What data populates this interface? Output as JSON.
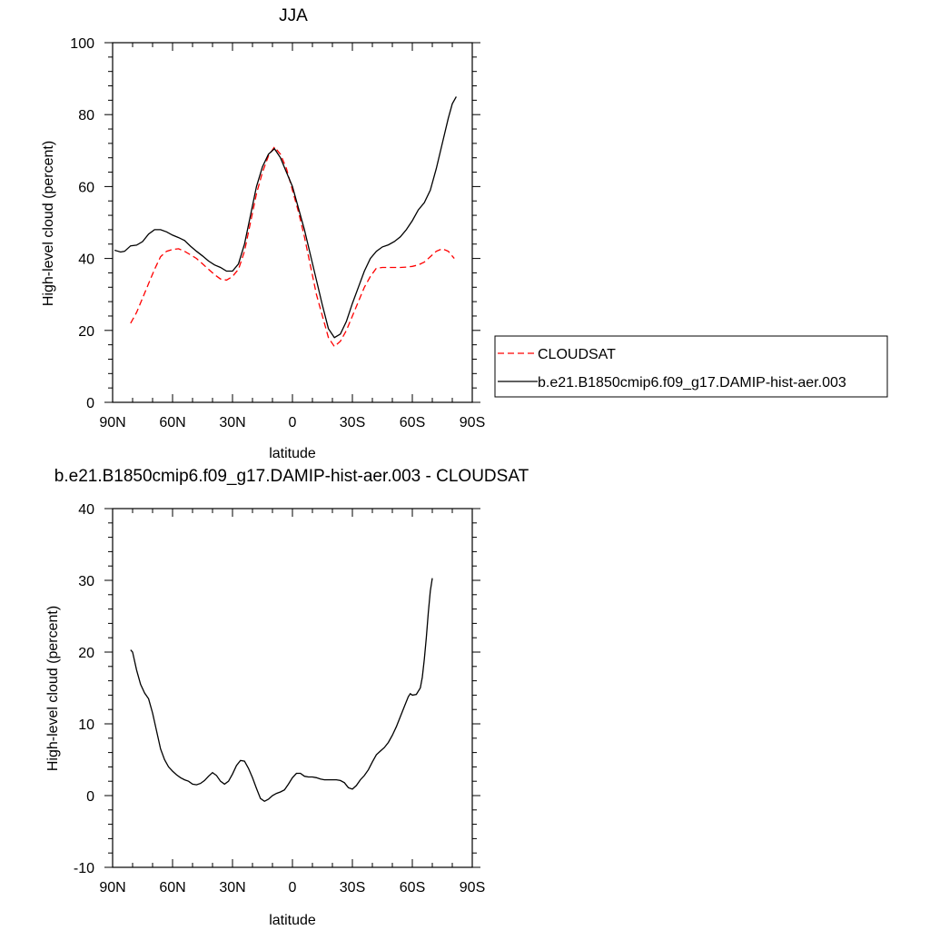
{
  "chart_data": [
    {
      "type": "line",
      "title": "JJA",
      "xlabel": "latitude",
      "ylabel": "High-level cloud (percent)",
      "xlim": [
        90,
        -90
      ],
      "ylim": [
        0,
        100
      ],
      "x_ticks": [
        {
          "value": 90,
          "label": "90N"
        },
        {
          "value": 60,
          "label": "60N"
        },
        {
          "value": 30,
          "label": "30N"
        },
        {
          "value": 0,
          "label": "0"
        },
        {
          "value": -30,
          "label": "30S"
        },
        {
          "value": -60,
          "label": "60S"
        },
        {
          "value": -90,
          "label": "90S"
        }
      ],
      "y_ticks": [
        0,
        20,
        40,
        60,
        80,
        100
      ],
      "grid": false,
      "legend_position": "right",
      "series": [
        {
          "name": "CLOUDSAT",
          "style": "dashed",
          "color": "#ff0000",
          "points": [
            [
              81,
              22
            ],
            [
              78,
              25
            ],
            [
              75,
              29
            ],
            [
              72,
              33
            ],
            [
              69,
              37
            ],
            [
              66,
              40.5
            ],
            [
              63,
              42
            ],
            [
              60,
              42.5
            ],
            [
              57,
              42.7
            ],
            [
              54,
              42
            ],
            [
              51,
              41
            ],
            [
              48,
              40
            ],
            [
              45,
              38.5
            ],
            [
              42,
              37
            ],
            [
              39,
              35.5
            ],
            [
              36,
              34.3
            ],
            [
              33,
              34
            ],
            [
              30,
              35
            ],
            [
              27,
              37
            ],
            [
              24,
              42
            ],
            [
              21,
              50
            ],
            [
              18,
              58
            ],
            [
              15,
              64
            ],
            [
              12,
              68.5
            ],
            [
              9,
              71
            ],
            [
              6,
              69
            ],
            [
              3,
              65
            ],
            [
              0,
              59
            ],
            [
              -3,
              53
            ],
            [
              -6,
              46
            ],
            [
              -9,
              38
            ],
            [
              -12,
              30
            ],
            [
              -15,
              24
            ],
            [
              -18,
              18
            ],
            [
              -21,
              15.5
            ],
            [
              -24,
              17
            ],
            [
              -27,
              20
            ],
            [
              -30,
              24
            ],
            [
              -33,
              28
            ],
            [
              -36,
              32
            ],
            [
              -39,
              35
            ],
            [
              -42,
              37.3
            ],
            [
              -45,
              37.5
            ],
            [
              -48,
              37.5
            ],
            [
              -51,
              37.5
            ],
            [
              -54,
              37.5
            ],
            [
              -57,
              37.6
            ],
            [
              -60,
              37.8
            ],
            [
              -63,
              38.2
            ],
            [
              -66,
              39
            ],
            [
              -69,
              40.5
            ],
            [
              -72,
              42
            ],
            [
              -75,
              42.7
            ],
            [
              -78,
              42
            ],
            [
              -81,
              40
            ]
          ]
        },
        {
          "name": "b.e21.B1850cmip6.f09_g17.DAMIP-hist-aer.003",
          "style": "solid",
          "color": "#000000",
          "points": [
            [
              89,
              42.3
            ],
            [
              86,
              41.8
            ],
            [
              84,
              42
            ],
            [
              81,
              43.5
            ],
            [
              78,
              43.7
            ],
            [
              75,
              44.7
            ],
            [
              72,
              46.8
            ],
            [
              69,
              48
            ],
            [
              66,
              48
            ],
            [
              63,
              47.4
            ],
            [
              60,
              46.5
            ],
            [
              57,
              45.8
            ],
            [
              54,
              45
            ],
            [
              51,
              43.4
            ],
            [
              48,
              42
            ],
            [
              45,
              40.7
            ],
            [
              42,
              39.3
            ],
            [
              39,
              38.2
            ],
            [
              36,
              37.5
            ],
            [
              33,
              36.5
            ],
            [
              30,
              36.5
            ],
            [
              27,
              38.5
            ],
            [
              24,
              44
            ],
            [
              21,
              52
            ],
            [
              18,
              60
            ],
            [
              15,
              65.5
            ],
            [
              12,
              69
            ],
            [
              9,
              70.5
            ],
            [
              6,
              68
            ],
            [
              3,
              64
            ],
            [
              0,
              60
            ],
            [
              -3,
              54
            ],
            [
              -6,
              48
            ],
            [
              -9,
              41
            ],
            [
              -12,
              34
            ],
            [
              -15,
              27
            ],
            [
              -18,
              20.5
            ],
            [
              -21,
              18
            ],
            [
              -24,
              19
            ],
            [
              -27,
              22.5
            ],
            [
              -30,
              27.5
            ],
            [
              -33,
              32
            ],
            [
              -36,
              36.5
            ],
            [
              -39,
              40
            ],
            [
              -42,
              42
            ],
            [
              -45,
              43.2
            ],
            [
              -48,
              43.8
            ],
            [
              -51,
              44.7
            ],
            [
              -54,
              46
            ],
            [
              -57,
              48
            ],
            [
              -60,
              50.5
            ],
            [
              -63,
              53.5
            ],
            [
              -66,
              55.5
            ],
            [
              -69,
              59
            ],
            [
              -72,
              65
            ],
            [
              -75,
              72
            ],
            [
              -78,
              79
            ],
            [
              -80,
              83
            ],
            [
              -82,
              85
            ]
          ]
        }
      ]
    },
    {
      "type": "line",
      "title": "b.e21.B1850cmip6.f09_g17.DAMIP-hist-aer.003 - CLOUDSAT",
      "xlabel": "latitude",
      "ylabel": "High-level cloud (percent)",
      "xlim": [
        90,
        -90
      ],
      "ylim": [
        -10,
        40
      ],
      "x_ticks": [
        {
          "value": 90,
          "label": "90N"
        },
        {
          "value": 60,
          "label": "60N"
        },
        {
          "value": 30,
          "label": "30N"
        },
        {
          "value": 0,
          "label": "0"
        },
        {
          "value": -30,
          "label": "30S"
        },
        {
          "value": -60,
          "label": "60S"
        },
        {
          "value": -90,
          "label": "90S"
        }
      ],
      "y_ticks": [
        -10,
        0,
        10,
        20,
        30,
        40
      ],
      "grid": false,
      "series": [
        {
          "style": "solid",
          "color": "#000000",
          "points": [
            [
              81,
              20.3
            ],
            [
              80,
              20
            ],
            [
              78,
              17.5
            ],
            [
              76,
              15.5
            ],
            [
              74,
              14.3
            ],
            [
              72,
              13.5
            ],
            [
              70,
              11.5
            ],
            [
              68,
              9
            ],
            [
              66,
              6.5
            ],
            [
              64,
              5
            ],
            [
              62,
              4
            ],
            [
              60,
              3.4
            ],
            [
              58,
              2.9
            ],
            [
              56,
              2.5
            ],
            [
              54,
              2.2
            ],
            [
              52,
              2
            ],
            [
              50,
              1.6
            ],
            [
              48,
              1.5
            ],
            [
              46,
              1.7
            ],
            [
              44,
              2.1
            ],
            [
              42,
              2.7
            ],
            [
              40,
              3.2
            ],
            [
              38,
              2.8
            ],
            [
              36,
              2
            ],
            [
              34,
              1.6
            ],
            [
              32,
              2
            ],
            [
              30,
              3
            ],
            [
              28,
              4.2
            ],
            [
              26,
              4.9
            ],
            [
              24,
              4.8
            ],
            [
              22,
              3.8
            ],
            [
              20,
              2.5
            ],
            [
              18,
              1
            ],
            [
              16,
              -0.4
            ],
            [
              14,
              -0.8
            ],
            [
              12,
              -0.5
            ],
            [
              10,
              0
            ],
            [
              8,
              0.3
            ],
            [
              6,
              0.5
            ],
            [
              4,
              0.8
            ],
            [
              2,
              1.6
            ],
            [
              0,
              2.5
            ],
            [
              -2,
              3.1
            ],
            [
              -4,
              3.1
            ],
            [
              -6,
              2.7
            ],
            [
              -8,
              2.6
            ],
            [
              -10,
              2.6
            ],
            [
              -12,
              2.5
            ],
            [
              -14,
              2.3
            ],
            [
              -16,
              2.2
            ],
            [
              -18,
              2.2
            ],
            [
              -20,
              2.2
            ],
            [
              -22,
              2.2
            ],
            [
              -24,
              2.1
            ],
            [
              -26,
              1.8
            ],
            [
              -28,
              1.1
            ],
            [
              -30,
              0.9
            ],
            [
              -32,
              1.4
            ],
            [
              -34,
              2.2
            ],
            [
              -36,
              2.8
            ],
            [
              -38,
              3.6
            ],
            [
              -40,
              4.7
            ],
            [
              -42,
              5.7
            ],
            [
              -44,
              6.2
            ],
            [
              -46,
              6.7
            ],
            [
              -48,
              7.4
            ],
            [
              -50,
              8.4
            ],
            [
              -52,
              9.6
            ],
            [
              -54,
              11
            ],
            [
              -56,
              12.4
            ],
            [
              -58,
              13.8
            ],
            [
              -59,
              14.2
            ],
            [
              -60,
              14
            ],
            [
              -62,
              14.1
            ],
            [
              -64,
              15
            ],
            [
              -65,
              16.5
            ],
            [
              -66,
              19
            ],
            [
              -67,
              22
            ],
            [
              -68,
              25.5
            ],
            [
              -69,
              28.5
            ],
            [
              -70,
              30.3
            ]
          ]
        }
      ]
    }
  ]
}
